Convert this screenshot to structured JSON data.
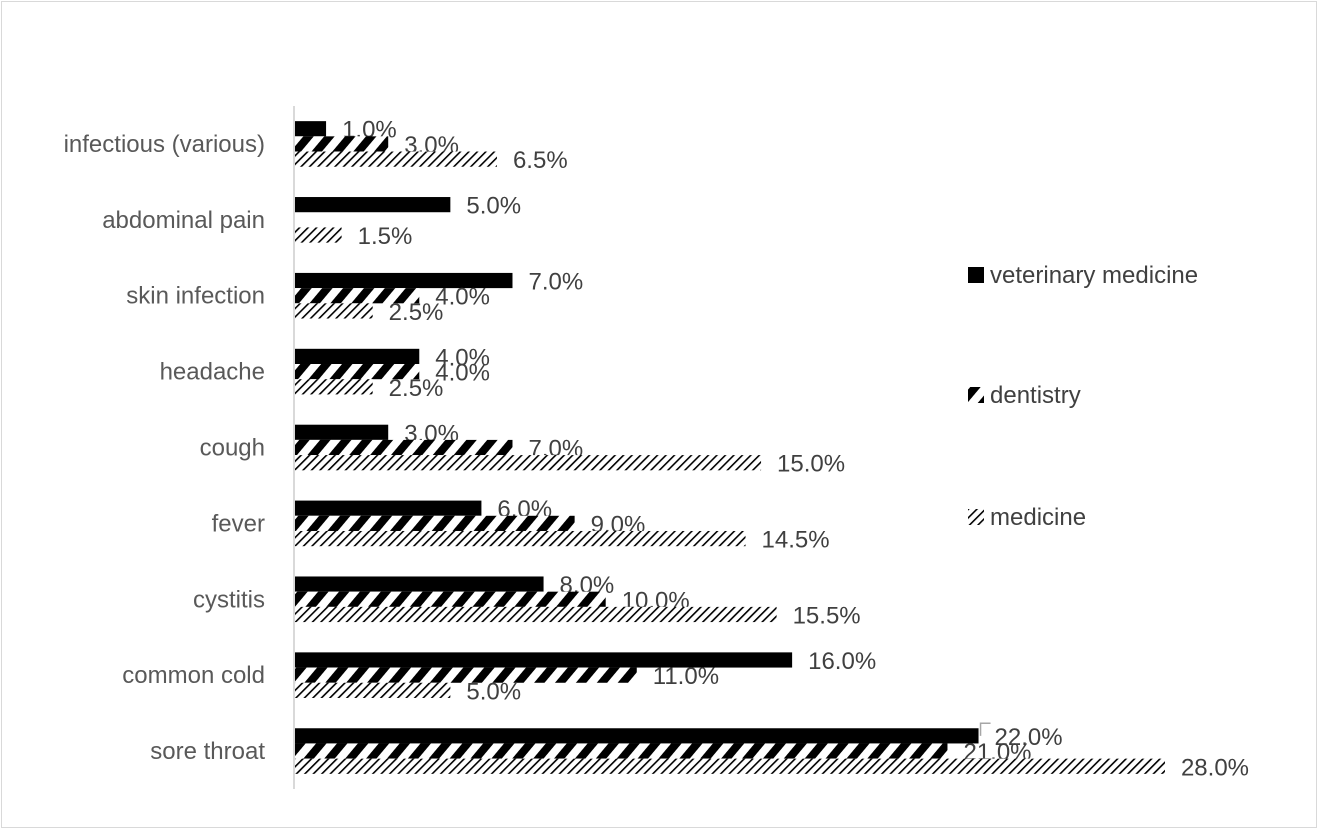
{
  "chart_data": {
    "type": "bar",
    "orientation": "horizontal",
    "title": "",
    "xlabel": "",
    "ylabel": "",
    "xlim": [
      0,
      30
    ],
    "grid": false,
    "legend_position": "right",
    "categories": [
      "sore throat",
      "common cold",
      "cystitis",
      "fever",
      "cough",
      "headache",
      "skin infection",
      "abdominal pain",
      "infectious (various)"
    ],
    "series": [
      {
        "name": "veterinary medicine",
        "pattern": "solid",
        "color": "#000000",
        "values": [
          22.0,
          16.0,
          8.0,
          6.0,
          3.0,
          4.0,
          7.0,
          5.0,
          1.0
        ],
        "labels": [
          "22.0%",
          "16.0%",
          "8.0%",
          "6.0%",
          "3.0%",
          "4.0%",
          "7.0%",
          "5.0%",
          "1.0%"
        ]
      },
      {
        "name": "dentistry",
        "pattern": "wide-diagonal",
        "color": "#000000",
        "values": [
          21.0,
          11.0,
          10.0,
          9.0,
          7.0,
          4.0,
          4.0,
          null,
          3.0
        ],
        "labels": [
          "21.0%",
          "11.0%",
          "10.0%",
          "9.0%",
          "7.0%",
          "4.0%",
          "4.0%",
          null,
          "3.0%"
        ]
      },
      {
        "name": "medicine",
        "pattern": "light-diagonal",
        "color": "#000000",
        "values": [
          28.0,
          5.0,
          15.5,
          14.5,
          15.0,
          2.5,
          2.5,
          1.5,
          6.5
        ],
        "labels": [
          "28.0%",
          "5.0%",
          "15.5%",
          "14.5%",
          "15.0%",
          "2.5%",
          "2.5%",
          "1.5%",
          "6.5%"
        ]
      }
    ]
  }
}
